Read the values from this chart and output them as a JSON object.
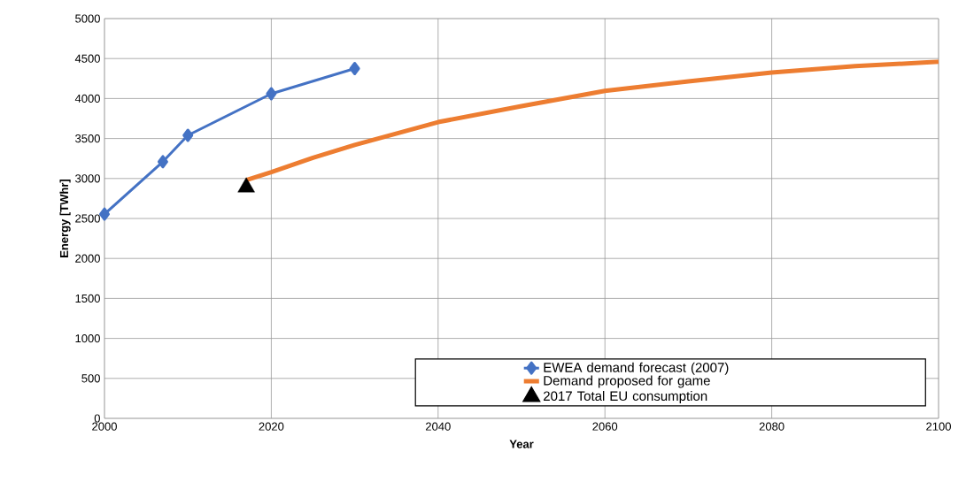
{
  "chart_data": {
    "type": "line",
    "xlabel": "Year",
    "ylabel": "Energy [TWhr]",
    "xlim": [
      2000,
      2100
    ],
    "xticks": [
      2000,
      2020,
      2040,
      2060,
      2080,
      2100
    ],
    "ylim": [
      0,
      5000
    ],
    "yticks": [
      0,
      500,
      1000,
      1500,
      2000,
      2500,
      3000,
      3500,
      4000,
      4500,
      5000
    ],
    "grid": true,
    "legend": "bottom right",
    "series": [
      {
        "name": "EWEA demand forecast (2007)",
        "color": "#4472c4",
        "marker": "diamond",
        "x": [
          2000,
          2007,
          2010,
          2020,
          2030
        ],
        "values": [
          2555,
          3210,
          3540,
          4060,
          4375
        ]
      },
      {
        "name": "Demand proposed for game",
        "color": "#ed7d31",
        "marker": "none",
        "x": [
          2017,
          2020,
          2025,
          2030,
          2040,
          2050,
          2060,
          2070,
          2080,
          2090,
          2100
        ],
        "values": [
          2980,
          3080,
          3260,
          3420,
          3705,
          3905,
          4095,
          4215,
          4325,
          4405,
          4460
        ]
      },
      {
        "name": "2017 Total EU consumption",
        "type": "scatter",
        "color": "#000000",
        "marker": "triangle",
        "x": [
          2017
        ],
        "values": [
          2890
        ]
      }
    ]
  }
}
